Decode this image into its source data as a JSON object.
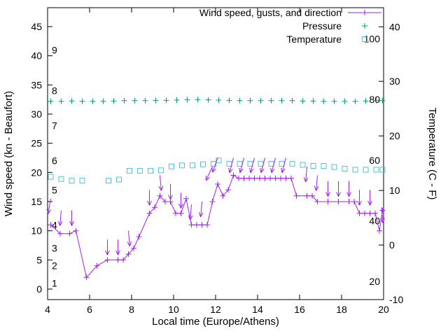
{
  "legend": {
    "entries": [
      {
        "label": "Wind speed, gusts, and direction",
        "series": "wind",
        "marker": "line-plus"
      },
      {
        "label": "Pressure",
        "series": "pressure",
        "marker": "plus"
      },
      {
        "label": "Temperature",
        "series": "temperature",
        "marker": "open-square"
      }
    ]
  },
  "chart_data": {
    "type": "line",
    "title": "",
    "xlabel": "Local time (Europe/Athens)",
    "ylabel": "Wind speed (kn - Beaufort)",
    "y2label": "Temperature (C - F)",
    "grid": false,
    "legend_position": "top-center-inside",
    "xlim": [
      4,
      20
    ],
    "ylim": [
      -1.8,
      48.24
    ],
    "y2lim": [
      -10,
      43.5
    ],
    "x_ticks": [
      4,
      6,
      8,
      10,
      12,
      14,
      16,
      18,
      20
    ],
    "y_left_ticks": [
      0,
      5,
      10,
      15,
      20,
      25,
      30,
      35,
      40,
      45
    ],
    "y_right_ticks": [
      -10,
      0,
      10,
      20,
      30,
      40
    ],
    "beaufort_labels": [
      {
        "label": "1",
        "kn": 1
      },
      {
        "label": "2",
        "kn": 4
      },
      {
        "label": "3",
        "kn": 7
      },
      {
        "label": "4",
        "kn": 11
      },
      {
        "label": "5",
        "kn": 17
      },
      {
        "label": "6",
        "kn": 22
      },
      {
        "label": "7",
        "kn": 28
      },
      {
        "label": "8",
        "kn": 34
      },
      {
        "label": "9",
        "kn": 41
      }
    ],
    "fahrenheit_labels": [
      20,
      40,
      60,
      80,
      100
    ],
    "colors": {
      "wind": "#A020F0",
      "pressure": "#009E73",
      "temperature": "#56C1D6",
      "foreground": "#000000"
    },
    "series": {
      "wind_speed": {
        "units": "kn",
        "points": [
          [
            4.15,
            11
          ],
          [
            4.6,
            9.5
          ],
          [
            5.05,
            9.5
          ],
          [
            5.35,
            10
          ],
          [
            5.85,
            2
          ],
          [
            6.35,
            4
          ],
          [
            6.85,
            5
          ],
          [
            7.35,
            5
          ],
          [
            7.6,
            5
          ],
          [
            7.85,
            6
          ],
          [
            8.1,
            7
          ],
          [
            8.35,
            9
          ],
          [
            8.85,
            13
          ],
          [
            9.1,
            14
          ],
          [
            9.35,
            16
          ],
          [
            9.6,
            15
          ],
          [
            9.85,
            15
          ],
          [
            10.1,
            13
          ],
          [
            10.35,
            13
          ],
          [
            10.6,
            15.5
          ],
          [
            10.85,
            11
          ],
          [
            11.1,
            11
          ],
          [
            11.35,
            11
          ],
          [
            11.6,
            11
          ],
          [
            11.85,
            15
          ],
          [
            12.1,
            18
          ],
          [
            12.35,
            16
          ],
          [
            12.6,
            17
          ],
          [
            12.85,
            19.5
          ],
          [
            13.1,
            19
          ],
          [
            13.35,
            19
          ],
          [
            13.6,
            19
          ],
          [
            13.85,
            19
          ],
          [
            14.1,
            19
          ],
          [
            14.35,
            19
          ],
          [
            14.6,
            19
          ],
          [
            14.85,
            19
          ],
          [
            15.1,
            19
          ],
          [
            15.35,
            19
          ],
          [
            15.6,
            19
          ],
          [
            15.85,
            16
          ],
          [
            16.35,
            16
          ],
          [
            16.6,
            16
          ],
          [
            16.85,
            15
          ],
          [
            17.35,
            15
          ],
          [
            17.85,
            15
          ],
          [
            18.35,
            15
          ],
          [
            18.6,
            15
          ],
          [
            18.85,
            13
          ],
          [
            19.1,
            13
          ],
          [
            19.35,
            13
          ],
          [
            19.6,
            13
          ],
          [
            19.8,
            10
          ],
          [
            19.95,
            13.5
          ]
        ]
      },
      "wind_gusts": {
        "units": "kn",
        "direction_note": "arrow points toward; degrees clockwise from up/north",
        "points": [
          [
            4.15,
            15.5,
            190
          ],
          [
            4.65,
            13.5,
            185
          ],
          [
            5.15,
            13.5,
            180
          ],
          [
            6.85,
            8.5,
            180
          ],
          [
            7.35,
            8.5,
            180
          ],
          [
            7.85,
            10,
            175
          ],
          [
            8.85,
            17,
            180
          ],
          [
            9.35,
            19.5,
            175
          ],
          [
            9.85,
            18,
            180
          ],
          [
            10.35,
            16.5,
            180
          ],
          [
            10.85,
            14.5,
            185
          ],
          [
            11.35,
            15,
            185
          ],
          [
            11.85,
            21,
            205
          ],
          [
            12.1,
            22.5,
            200
          ],
          [
            12.85,
            22.5,
            195
          ],
          [
            13.35,
            22.5,
            195
          ],
          [
            13.85,
            22.5,
            195
          ],
          [
            14.35,
            22.5,
            195
          ],
          [
            14.85,
            22.5,
            195
          ],
          [
            15.35,
            22.5,
            195
          ],
          [
            16.35,
            21,
            185
          ],
          [
            16.85,
            19.5,
            185
          ],
          [
            17.35,
            18.5,
            180
          ],
          [
            17.85,
            18.5,
            180
          ],
          [
            18.35,
            18.5,
            180
          ],
          [
            18.85,
            17,
            180
          ],
          [
            19.35,
            17,
            180
          ],
          [
            19.9,
            14,
            175
          ]
        ]
      },
      "pressure": {
        "units": "left-axis plot units (no pressure scale shown)",
        "points": [
          [
            4.15,
            32.2
          ],
          [
            4.65,
            32.2
          ],
          [
            5.15,
            32.25
          ],
          [
            5.65,
            32.2
          ],
          [
            6.15,
            32.2
          ],
          [
            6.65,
            32.2
          ],
          [
            7.15,
            32.25
          ],
          [
            7.65,
            32.3
          ],
          [
            8.15,
            32.3
          ],
          [
            8.65,
            32.3
          ],
          [
            9.15,
            32.35
          ],
          [
            9.65,
            32.35
          ],
          [
            10.15,
            32.4
          ],
          [
            10.65,
            32.5
          ],
          [
            11.15,
            32.5
          ],
          [
            11.65,
            32.45
          ],
          [
            12.15,
            32.4
          ],
          [
            12.65,
            32.35
          ],
          [
            13.15,
            32.3
          ],
          [
            13.65,
            32.3
          ],
          [
            14.15,
            32.3
          ],
          [
            14.65,
            32.3
          ],
          [
            15.15,
            32.3
          ],
          [
            15.65,
            32.3
          ],
          [
            16.15,
            32.25
          ],
          [
            16.65,
            32.25
          ],
          [
            17.15,
            32.2
          ],
          [
            17.65,
            32.2
          ],
          [
            18.15,
            32.2
          ],
          [
            18.65,
            32.2
          ],
          [
            19.15,
            32.25
          ],
          [
            19.65,
            32.3
          ],
          [
            19.95,
            32.3
          ]
        ]
      },
      "temperature": {
        "units": "C",
        "points": [
          [
            4.15,
            12.5
          ],
          [
            4.65,
            12.1
          ],
          [
            5.15,
            11.8
          ],
          [
            5.65,
            11.8
          ],
          [
            6.9,
            11.8
          ],
          [
            7.4,
            12.0
          ],
          [
            7.9,
            13.6
          ],
          [
            8.4,
            13.6
          ],
          [
            8.9,
            13.6
          ],
          [
            9.4,
            13.7
          ],
          [
            9.9,
            14.4
          ],
          [
            10.4,
            14.6
          ],
          [
            10.9,
            14.6
          ],
          [
            11.4,
            14.8
          ],
          [
            11.9,
            14.9
          ],
          [
            12.15,
            15.5
          ],
          [
            12.65,
            14.9
          ],
          [
            13.15,
            14.9
          ],
          [
            13.65,
            14.9
          ],
          [
            14.15,
            14.9
          ],
          [
            14.65,
            14.9
          ],
          [
            15.15,
            14.9
          ],
          [
            15.65,
            14.9
          ],
          [
            16.15,
            14.7
          ],
          [
            16.65,
            14.5
          ],
          [
            17.15,
            14.5
          ],
          [
            17.65,
            14.3
          ],
          [
            18.15,
            14.0
          ],
          [
            18.65,
            13.8
          ],
          [
            19.15,
            13.8
          ],
          [
            19.65,
            13.8
          ],
          [
            19.95,
            13.8
          ]
        ]
      }
    }
  }
}
